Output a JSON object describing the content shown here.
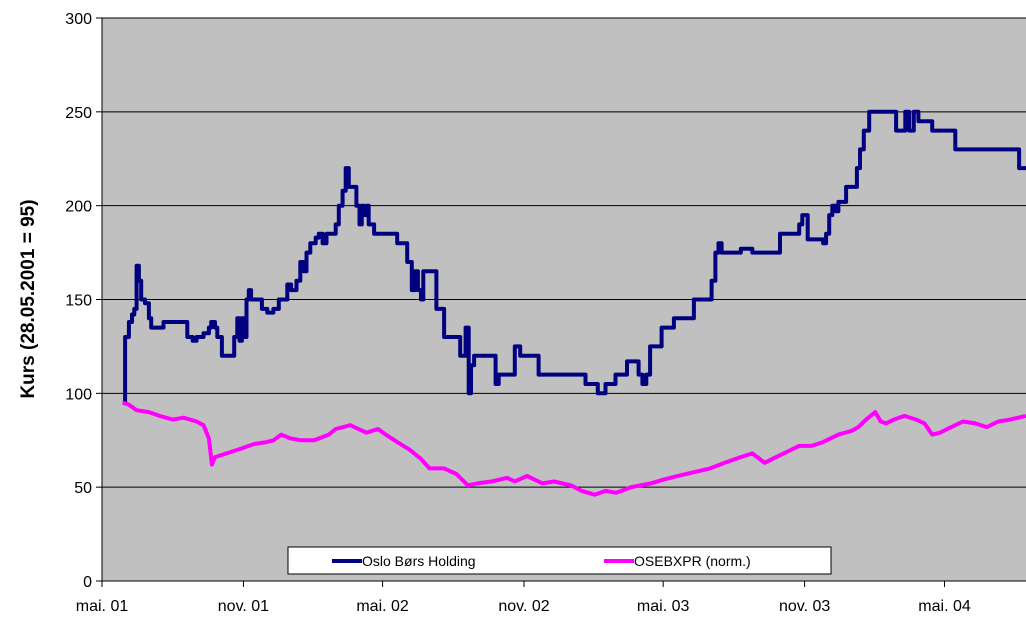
{
  "chart_data": {
    "type": "line",
    "title": "",
    "xlabel": "",
    "ylabel": "Kurs (28.05.2001 = 95)",
    "ylim": [
      0,
      300
    ],
    "yticks": [
      "0",
      "50",
      "100",
      "150",
      "200",
      "250",
      "300"
    ],
    "xticks": [
      "mai. 01",
      "nov. 01",
      "mai. 02",
      "nov. 02",
      "mai. 03",
      "nov. 03",
      "mai. 04"
    ],
    "xticks_dates": [
      "2001-05-01",
      "2001-11-01",
      "2002-05-01",
      "2002-11-01",
      "2003-05-01",
      "2003-11-01",
      "2004-05-01"
    ],
    "xlim": [
      "2001-05-01",
      "2004-08-15"
    ],
    "grid": true,
    "legend_position": "bottom-center",
    "colors": {
      "plot_bg": "#c0c0c0",
      "grid": "#000000"
    },
    "series": [
      {
        "name": "Oslo Børs Holding",
        "color": "#000080",
        "step": true,
        "points": [
          [
            "2001-05-28",
            95
          ],
          [
            "2001-05-31",
            130
          ],
          [
            "2001-06-05",
            138
          ],
          [
            "2001-06-09",
            142
          ],
          [
            "2001-06-12",
            145
          ],
          [
            "2001-06-15",
            168
          ],
          [
            "2001-06-18",
            160
          ],
          [
            "2001-06-21",
            150
          ],
          [
            "2001-06-26",
            148
          ],
          [
            "2001-07-01",
            140
          ],
          [
            "2001-07-04",
            135
          ],
          [
            "2001-07-20",
            138
          ],
          [
            "2001-08-20",
            130
          ],
          [
            "2001-08-27",
            128
          ],
          [
            "2001-09-01",
            130
          ],
          [
            "2001-09-10",
            132
          ],
          [
            "2001-09-17",
            135
          ],
          [
            "2001-09-20",
            138
          ],
          [
            "2001-09-25",
            135
          ],
          [
            "2001-09-28",
            130
          ],
          [
            "2001-10-04",
            120
          ],
          [
            "2001-10-20",
            130
          ],
          [
            "2001-10-24",
            140
          ],
          [
            "2001-10-27",
            128
          ],
          [
            "2001-10-30",
            140
          ],
          [
            "2001-11-02",
            130
          ],
          [
            "2001-11-05",
            150
          ],
          [
            "2001-11-08",
            155
          ],
          [
            "2001-11-11",
            150
          ],
          [
            "2001-11-25",
            145
          ],
          [
            "2001-12-02",
            143
          ],
          [
            "2001-12-10",
            145
          ],
          [
            "2001-12-17",
            150
          ],
          [
            "2001-12-28",
            158
          ],
          [
            "2002-01-02",
            155
          ],
          [
            "2002-01-09",
            160
          ],
          [
            "2002-01-14",
            170
          ],
          [
            "2002-01-18",
            165
          ],
          [
            "2002-01-22",
            175
          ],
          [
            "2002-01-27",
            180
          ],
          [
            "2002-02-03",
            183
          ],
          [
            "2002-02-07",
            185
          ],
          [
            "2002-02-12",
            180
          ],
          [
            "2002-02-17",
            185
          ],
          [
            "2002-03-01",
            190
          ],
          [
            "2002-03-05",
            200
          ],
          [
            "2002-03-10",
            208
          ],
          [
            "2002-03-14",
            220
          ],
          [
            "2002-03-18",
            210
          ],
          [
            "2002-03-28",
            200
          ],
          [
            "2002-04-01",
            190
          ],
          [
            "2002-04-04",
            200
          ],
          [
            "2002-04-07",
            195
          ],
          [
            "2002-04-10",
            200
          ],
          [
            "2002-04-13",
            190
          ],
          [
            "2002-04-20",
            185
          ],
          [
            "2002-05-20",
            180
          ],
          [
            "2002-06-02",
            170
          ],
          [
            "2002-06-08",
            155
          ],
          [
            "2002-06-12",
            165
          ],
          [
            "2002-06-16",
            155
          ],
          [
            "2002-06-20",
            150
          ],
          [
            "2002-06-23",
            165
          ],
          [
            "2002-07-10",
            145
          ],
          [
            "2002-07-20",
            130
          ],
          [
            "2002-08-10",
            120
          ],
          [
            "2002-08-17",
            135
          ],
          [
            "2002-08-21",
            100
          ],
          [
            "2002-08-24",
            115
          ],
          [
            "2002-08-28",
            120
          ],
          [
            "2002-09-25",
            105
          ],
          [
            "2002-09-29",
            110
          ],
          [
            "2002-10-20",
            125
          ],
          [
            "2002-10-27",
            120
          ],
          [
            "2002-11-20",
            110
          ],
          [
            "2003-01-20",
            105
          ],
          [
            "2003-02-05",
            100
          ],
          [
            "2003-02-15",
            105
          ],
          [
            "2003-02-28",
            110
          ],
          [
            "2003-03-15",
            117
          ],
          [
            "2003-03-30",
            110
          ],
          [
            "2003-04-04",
            105
          ],
          [
            "2003-04-09",
            110
          ],
          [
            "2003-04-14",
            125
          ],
          [
            "2003-04-29",
            135
          ],
          [
            "2003-05-15",
            140
          ],
          [
            "2003-06-10",
            150
          ],
          [
            "2003-07-03",
            160
          ],
          [
            "2003-07-08",
            175
          ],
          [
            "2003-07-12",
            180
          ],
          [
            "2003-07-16",
            175
          ],
          [
            "2003-08-10",
            177
          ],
          [
            "2003-08-25",
            175
          ],
          [
            "2003-09-30",
            185
          ],
          [
            "2003-10-25",
            190
          ],
          [
            "2003-10-29",
            195
          ],
          [
            "2003-11-05",
            182
          ],
          [
            "2003-11-25",
            180
          ],
          [
            "2003-11-29",
            185
          ],
          [
            "2003-12-03",
            195
          ],
          [
            "2003-12-07",
            200
          ],
          [
            "2003-12-11",
            197
          ],
          [
            "2003-12-15",
            202
          ],
          [
            "2003-12-25",
            210
          ],
          [
            "2004-01-08",
            220
          ],
          [
            "2004-01-12",
            230
          ],
          [
            "2004-01-17",
            240
          ],
          [
            "2004-01-24",
            250
          ],
          [
            "2004-02-28",
            240
          ],
          [
            "2004-03-11",
            250
          ],
          [
            "2004-03-16",
            240
          ],
          [
            "2004-03-22",
            250
          ],
          [
            "2004-03-28",
            245
          ],
          [
            "2004-04-15",
            240
          ],
          [
            "2004-05-15",
            230
          ],
          [
            "2004-08-06",
            220
          ],
          [
            "2004-08-15",
            220
          ]
        ]
      },
      {
        "name": "OSEBXPR (norm.)",
        "color": "#ff00ff",
        "step": false,
        "points": [
          [
            "2001-05-28",
            95
          ],
          [
            "2001-06-05",
            94
          ],
          [
            "2001-06-15",
            91
          ],
          [
            "2001-07-01",
            90
          ],
          [
            "2001-07-15",
            88
          ],
          [
            "2001-08-01",
            86
          ],
          [
            "2001-08-15",
            87
          ],
          [
            "2001-09-01",
            85
          ],
          [
            "2001-09-10",
            83
          ],
          [
            "2001-09-17",
            76
          ],
          [
            "2001-09-21",
            62
          ],
          [
            "2001-09-25",
            66
          ],
          [
            "2001-10-10",
            68
          ],
          [
            "2001-10-25",
            70
          ],
          [
            "2001-11-15",
            73
          ],
          [
            "2001-12-01",
            74
          ],
          [
            "2001-12-10",
            75
          ],
          [
            "2001-12-20",
            78
          ],
          [
            "2002-01-01",
            76
          ],
          [
            "2002-01-15",
            75
          ],
          [
            "2002-02-01",
            75
          ],
          [
            "2002-02-20",
            78
          ],
          [
            "2002-03-01",
            81
          ],
          [
            "2002-03-20",
            83
          ],
          [
            "2002-04-10",
            79
          ],
          [
            "2002-04-25",
            81
          ],
          [
            "2002-05-05",
            78
          ],
          [
            "2002-05-20",
            74
          ],
          [
            "2002-06-05",
            70
          ],
          [
            "2002-06-20",
            65
          ],
          [
            "2002-07-01",
            60
          ],
          [
            "2002-07-20",
            60
          ],
          [
            "2002-08-05",
            57
          ],
          [
            "2002-08-20",
            51
          ],
          [
            "2002-09-01",
            52
          ],
          [
            "2002-09-20",
            53
          ],
          [
            "2002-10-10",
            55
          ],
          [
            "2002-10-20",
            53
          ],
          [
            "2002-11-05",
            56
          ],
          [
            "2002-11-25",
            52
          ],
          [
            "2002-12-10",
            53
          ],
          [
            "2003-01-01",
            51
          ],
          [
            "2003-01-15",
            48
          ],
          [
            "2003-02-01",
            46
          ],
          [
            "2003-02-15",
            48
          ],
          [
            "2003-03-01",
            47
          ],
          [
            "2003-03-20",
            50
          ],
          [
            "2003-04-15",
            52
          ],
          [
            "2003-05-01",
            54
          ],
          [
            "2003-05-20",
            56
          ],
          [
            "2003-06-10",
            58
          ],
          [
            "2003-07-01",
            60
          ],
          [
            "2003-07-20",
            63
          ],
          [
            "2003-08-10",
            66
          ],
          [
            "2003-08-25",
            68
          ],
          [
            "2003-09-10",
            63
          ],
          [
            "2003-09-25",
            66
          ],
          [
            "2003-10-10",
            69
          ],
          [
            "2003-10-25",
            72
          ],
          [
            "2003-11-10",
            72
          ],
          [
            "2003-11-25",
            74
          ],
          [
            "2003-12-15",
            78
          ],
          [
            "2004-01-01",
            80
          ],
          [
            "2004-01-10",
            82
          ],
          [
            "2004-01-20",
            86
          ],
          [
            "2004-02-01",
            90
          ],
          [
            "2004-02-08",
            85
          ],
          [
            "2004-02-15",
            84
          ],
          [
            "2004-02-25",
            86
          ],
          [
            "2004-03-10",
            88
          ],
          [
            "2004-03-25",
            86
          ],
          [
            "2004-04-05",
            84
          ],
          [
            "2004-04-15",
            78
          ],
          [
            "2004-04-25",
            79
          ],
          [
            "2004-05-10",
            82
          ],
          [
            "2004-05-25",
            85
          ],
          [
            "2004-06-10",
            84
          ],
          [
            "2004-06-25",
            82
          ],
          [
            "2004-07-10",
            85
          ],
          [
            "2004-07-25",
            86
          ],
          [
            "2004-08-15",
            88
          ]
        ]
      }
    ]
  }
}
